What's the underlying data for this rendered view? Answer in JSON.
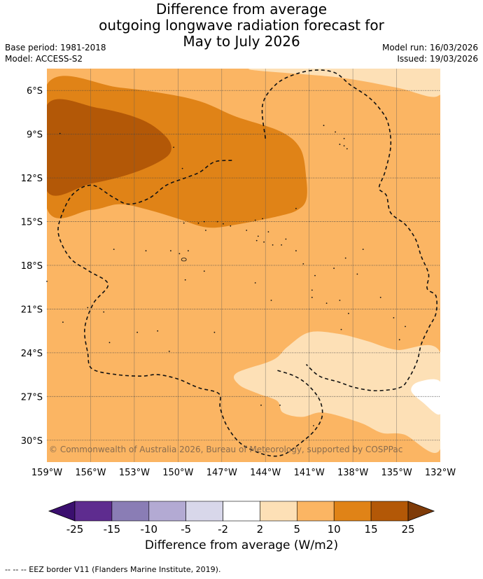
{
  "title": {
    "line1": "Difference from average",
    "line2": "outgoing longwave radiation forecast for",
    "line3": "May to July 2026"
  },
  "meta": {
    "base_period": "Base period: 1981-2018",
    "model": "Model: ACCESS-S2",
    "model_run": "Model run: 16/03/2026",
    "issued": "Issued: 19/03/2026"
  },
  "copyright": "© Commonwealth of Australia 2026, Bureau of Meteorology, supported by COSPPac",
  "footer": "--  --  -- EEZ border V11 (Flanders Marine Institute, 2019).",
  "colors": {
    "levels": [
      "#3b0f6f",
      "#5e2c8f",
      "#8a7db5",
      "#b3aad3",
      "#d8d7ea",
      "#ffffff",
      "#fde0b6",
      "#fbb563",
      "#e08317",
      "#b35807",
      "#7f3b08"
    ]
  },
  "chart_data": {
    "type": "heatmap",
    "title": "Difference from average outgoing longwave radiation forecast for May to July 2026",
    "colorbar_label": "Difference from average (W/m2)",
    "colorbar_ticks": [
      "-25",
      "-15",
      "-10",
      "-5",
      "-2",
      "2",
      "5",
      "10",
      "15",
      "25"
    ],
    "levels": [
      -25,
      -15,
      -10,
      -5,
      -2,
      2,
      5,
      10,
      15,
      25
    ],
    "x_ticks": [
      "159°W",
      "156°W",
      "153°W",
      "150°W",
      "147°W",
      "144°W",
      "141°W",
      "138°W",
      "135°W",
      "132°W"
    ],
    "x_values": [
      -159,
      -156,
      -153,
      -150,
      -147,
      -144,
      -141,
      -138,
      -135,
      -132
    ],
    "y_ticks": [
      "6°S",
      "9°S",
      "12°S",
      "15°S",
      "18°S",
      "21°S",
      "24°S",
      "27°S",
      "30°S"
    ],
    "y_values": [
      -6,
      -9,
      -12,
      -15,
      -18,
      -21,
      -24,
      -27,
      -30
    ],
    "xlim": [
      -159,
      -132
    ],
    "ylim": [
      -31.5,
      -4.5
    ],
    "regions": [
      {
        "name": "moderate-positive",
        "range": "5 to 10",
        "level_index": 7,
        "ring": [
          [
            -159,
            -4.5
          ],
          [
            -132,
            -4.5
          ],
          [
            -132,
            -31.5
          ],
          [
            -159,
            -31.5
          ]
        ]
      },
      {
        "name": "strong-positive",
        "range": "10 to 15",
        "level_index": 8,
        "ring": [
          [
            -159,
            -5.6
          ],
          [
            -154,
            -5.8
          ],
          [
            -149,
            -6.6
          ],
          [
            -146,
            -7.8
          ],
          [
            -143,
            -8.8
          ],
          [
            -141.6,
            -10
          ],
          [
            -141.2,
            -12
          ],
          [
            -141.2,
            -13.5
          ],
          [
            -141.8,
            -14.2
          ],
          [
            -143,
            -14.6
          ],
          [
            -146,
            -15.2
          ],
          [
            -148,
            -15.4
          ],
          [
            -150,
            -14.8
          ],
          [
            -152,
            -14.2
          ],
          [
            -154,
            -13.8
          ],
          [
            -156,
            -14.2
          ],
          [
            -159,
            -14.1
          ]
        ]
      },
      {
        "name": "very-strong-positive",
        "range": "15 to 25",
        "level_index": 9,
        "ring": [
          [
            -159,
            -7.0
          ],
          [
            -155.5,
            -7.2
          ],
          [
            -152.5,
            -8.0
          ],
          [
            -150.8,
            -9.2
          ],
          [
            -150.5,
            -10.2
          ],
          [
            -151.5,
            -11.0
          ],
          [
            -153.5,
            -11.8
          ],
          [
            -156,
            -12.4
          ],
          [
            -159,
            -12.9
          ]
        ]
      },
      {
        "name": "weak-positive",
        "range": "2 to 5",
        "level_index": 6,
        "ring": [
          [
            -132,
            -4.5
          ],
          [
            -145,
            -4.5
          ],
          [
            -139,
            -5.1
          ],
          [
            -135,
            -5.8
          ],
          [
            -132.2,
            -6.4
          ]
        ]
      },
      {
        "name": "weak-positive",
        "range": "2 to 5",
        "level_index": 6,
        "ring": [
          [
            -132,
            -24.0
          ],
          [
            -135,
            -23.8
          ],
          [
            -137,
            -23.2
          ],
          [
            -139,
            -22.7
          ],
          [
            -141,
            -22.6
          ],
          [
            -142.5,
            -23.6
          ],
          [
            -143.5,
            -24.5
          ],
          [
            -146,
            -25.4
          ],
          [
            -145.8,
            -26.2
          ],
          [
            -144.5,
            -26.8
          ],
          [
            -143.2,
            -27.3
          ],
          [
            -142.8,
            -28.1
          ],
          [
            -141.5,
            -28.4
          ],
          [
            -140,
            -28.1
          ],
          [
            -137.5,
            -28.8
          ],
          [
            -136,
            -29.5
          ],
          [
            -134.5,
            -29.6
          ],
          [
            -132,
            -30.6
          ]
        ]
      }
    ],
    "white_region": {
      "range": "-2 to 2",
      "ring": [
        [
          -132,
          -26.0
        ],
        [
          -133.5,
          -26.0
        ],
        [
          -134,
          -26.6
        ],
        [
          -133.2,
          -27.4
        ],
        [
          -132,
          -28.2
        ]
      ]
    },
    "annotations": [
      "© Commonwealth of Australia 2026, Bureau of Meteorology, supported by COSPPac"
    ]
  }
}
